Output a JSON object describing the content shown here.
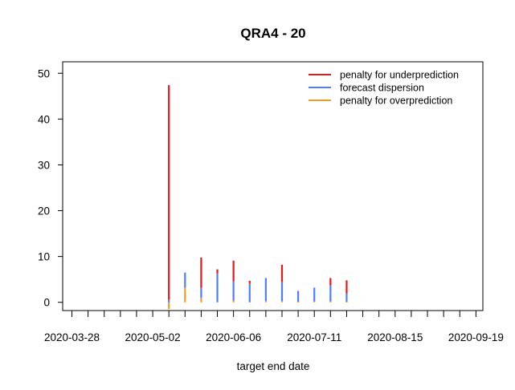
{
  "chart_data": {
    "type": "bar",
    "title": "QRA4 - 20",
    "xlabel": "target end date",
    "ylabel": "",
    "ylim": [
      -1.8,
      52.5
    ],
    "xlim": [
      "2020-03-24",
      "2020-09-22"
    ],
    "y_ticks": [
      0,
      10,
      20,
      30,
      40,
      50
    ],
    "x_tick_labels": [
      "2020-03-28",
      "2020-05-02",
      "2020-06-06",
      "2020-07-11",
      "2020-08-15",
      "2020-09-19"
    ],
    "x_minor_tick_interval_days": 7,
    "grid": false,
    "legend_position": "top-right",
    "stack_order": [
      "penalty for overprediction",
      "forecast dispersion",
      "penalty for underprediction"
    ],
    "categories": [
      "2020-05-09",
      "2020-05-16",
      "2020-05-23",
      "2020-05-30",
      "2020-06-06",
      "2020-06-13",
      "2020-06-20",
      "2020-06-27",
      "2020-07-04",
      "2020-07-11",
      "2020-07-18",
      "2020-07-25"
    ],
    "series": [
      {
        "name": "penalty for underprediction",
        "color": "#e31a1c",
        "values": [
          46.8,
          0,
          6.6,
          0.9,
          4.5,
          0.6,
          0,
          3.7,
          0,
          0,
          1.6,
          2.9
        ]
      },
      {
        "name": "forecast dispersion",
        "color": "#4f7ff0",
        "values": [
          0.6,
          3.3,
          2.2,
          6.3,
          4.2,
          4.1,
          5.0,
          4.2,
          2.4,
          3.0,
          3.5,
          1.8
        ]
      },
      {
        "name": "penalty for overprediction",
        "color": "#f0a020",
        "values": [
          -1.5,
          3.2,
          1.0,
          0,
          0.4,
          0,
          0.3,
          0.3,
          0.1,
          0.2,
          0.2,
          0.1
        ]
      }
    ]
  }
}
